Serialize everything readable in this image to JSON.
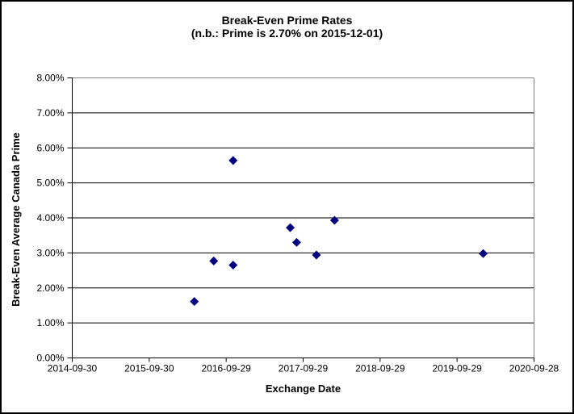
{
  "chart_data": {
    "type": "scatter",
    "title": "Break-Even Prime Rates (n.b.: Prime is 2.70% on 2015-12-01)",
    "title_lines": {
      "0": "Break-Even Prime Rates",
      "1": "(n.b.: Prime is 2.70% on 2015-12-01)"
    },
    "xlabel": "Exchange Date",
    "ylabel": "Break-Even Average Canada Prime",
    "x_ticks": [
      "2014-09-30",
      "2015-09-30",
      "2016-09-29",
      "2017-09-29",
      "2018-09-29",
      "2019-09-29",
      "2020-09-28"
    ],
    "y_ticks": [
      "0.00%",
      "1.00%",
      "2.00%",
      "3.00%",
      "4.00%",
      "5.00%",
      "6.00%",
      "7.00%",
      "8.00%"
    ],
    "xlim": [
      "2014-09-30",
      "2020-09-28"
    ],
    "ylim": [
      0,
      8
    ],
    "grid": "horizontal-black",
    "legend": "none",
    "marker": {
      "shape": "diamond",
      "color": "#000080",
      "size": 11
    },
    "points": [
      {
        "x": "2016-05-01",
        "y": 1.61
      },
      {
        "x": "2016-08-01",
        "y": 2.77
      },
      {
        "x": "2016-11-01",
        "y": 2.65
      },
      {
        "x": "2016-11-01",
        "y": 5.64
      },
      {
        "x": "2017-07-30",
        "y": 3.72
      },
      {
        "x": "2017-08-29",
        "y": 3.3
      },
      {
        "x": "2017-12-01",
        "y": 2.94
      },
      {
        "x": "2018-02-25",
        "y": 3.93
      },
      {
        "x": "2020-01-31",
        "y": 2.98
      }
    ]
  },
  "colors": {
    "background": "#ffffff",
    "outer_border": "#000000",
    "plot_frame": "#808080",
    "axis": "#000000",
    "gridline": "#000000",
    "marker": "#000080",
    "text": "#000000"
  }
}
